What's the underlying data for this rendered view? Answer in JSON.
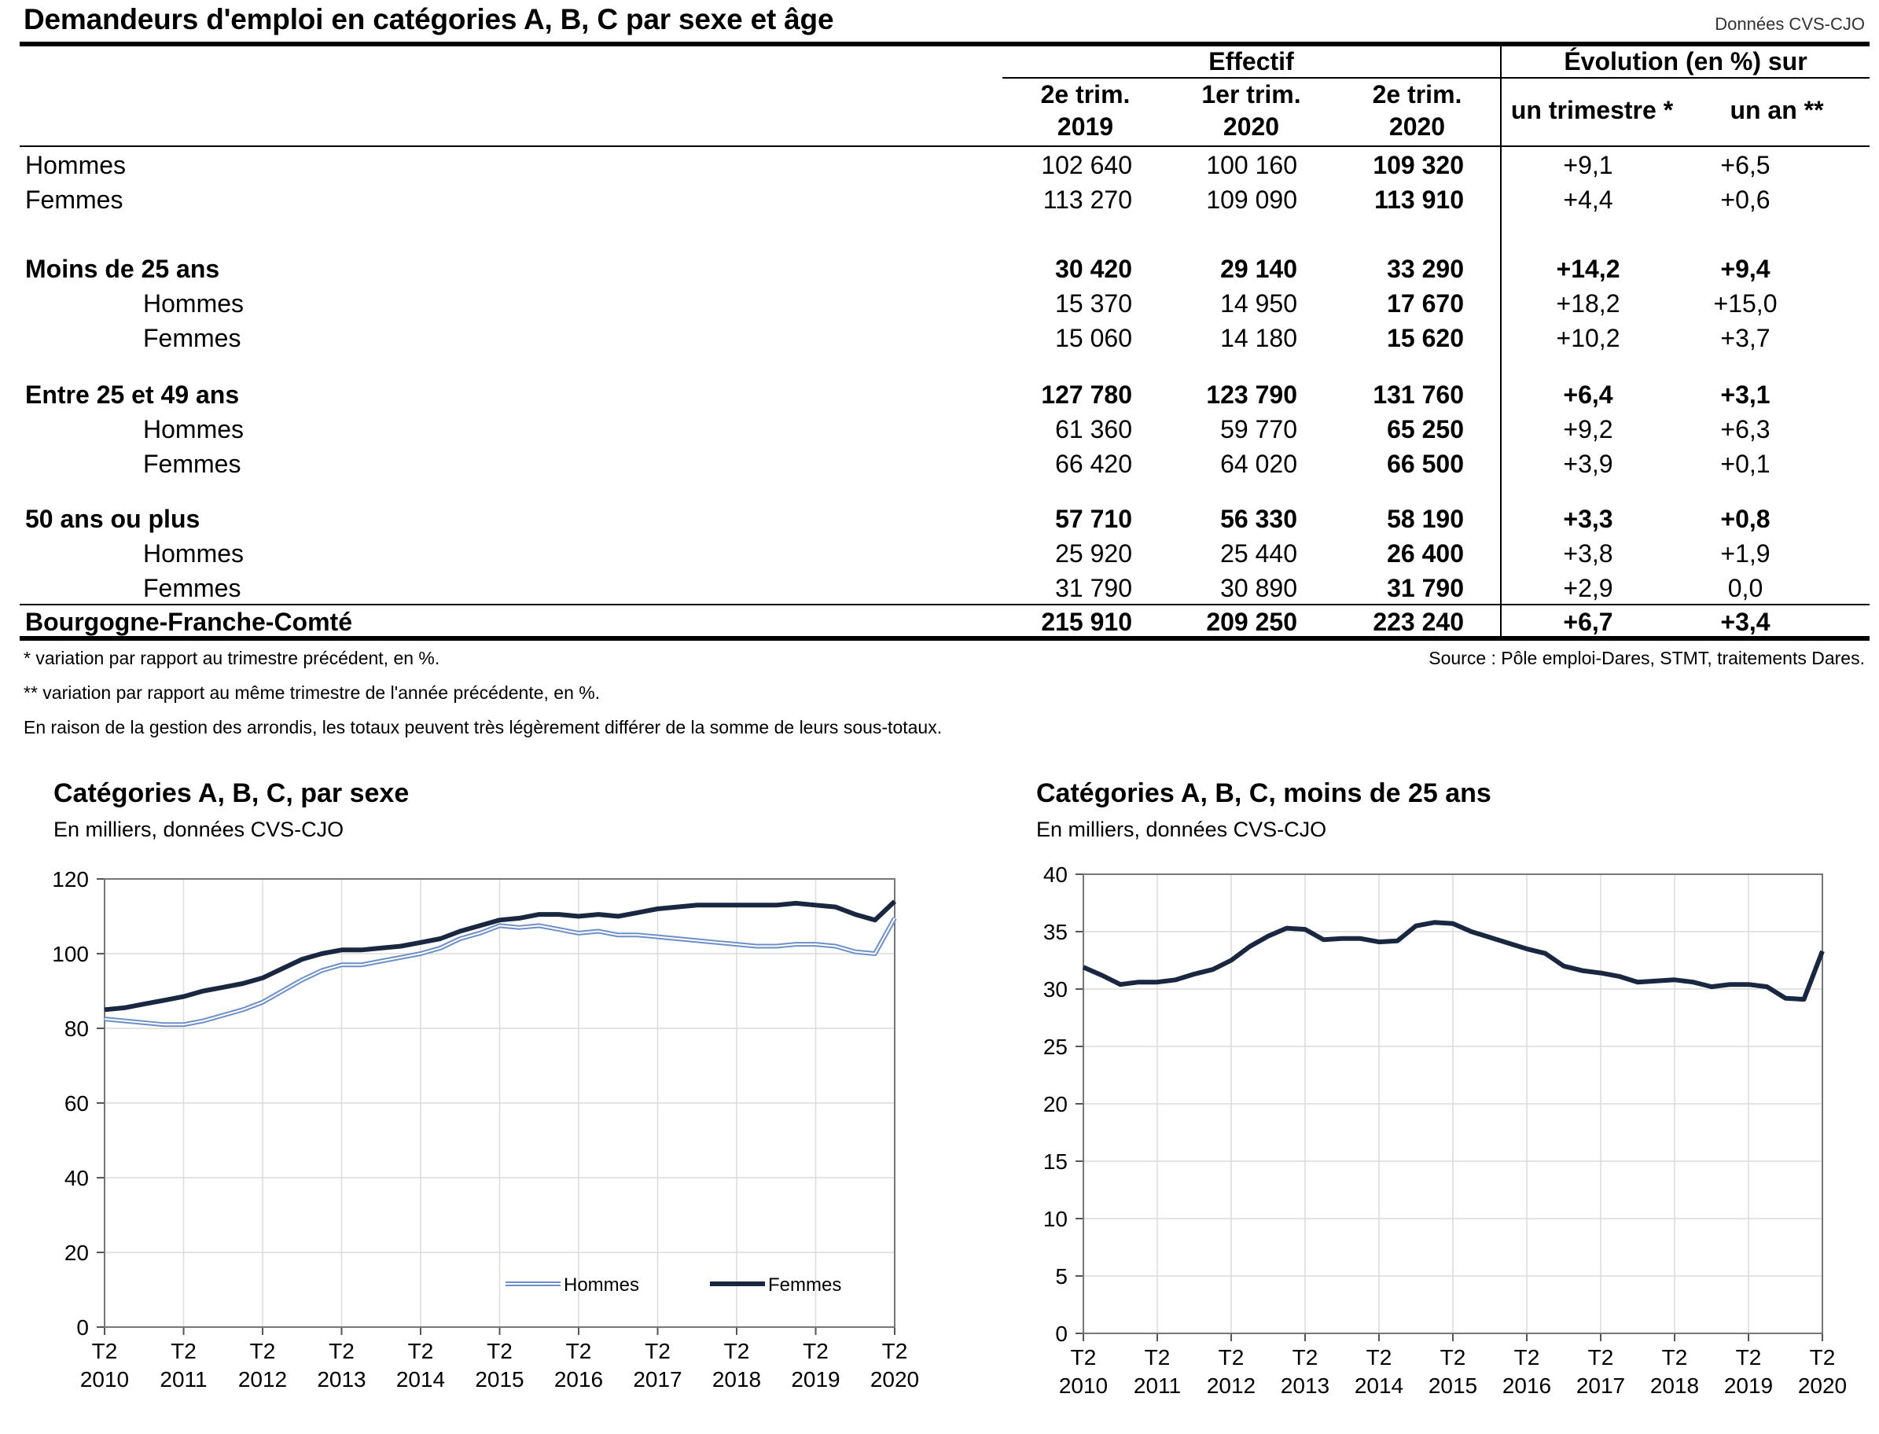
{
  "page": {
    "title": "Demandeurs d'emploi en catégories A, B, C par sexe et âge",
    "data_note": "Données CVS-CJO"
  },
  "table": {
    "group_headers": {
      "effectif": "Effectif",
      "evolution": "Évolution (en %) sur"
    },
    "columns": [
      {
        "line1": "2e trim.",
        "line2": "2019"
      },
      {
        "line1": "1er trim.",
        "line2": "2020"
      },
      {
        "line1": "2e trim.",
        "line2": "2020"
      }
    ],
    "evolution_columns": [
      "un trimestre *",
      "un an **"
    ],
    "rows": [
      {
        "label": "Hommes",
        "values": [
          "102 640",
          "100 160",
          "109 320"
        ],
        "evol": [
          "+9,1",
          "+6,5"
        ],
        "bold": false,
        "indent": false
      },
      {
        "label": "Femmes",
        "values": [
          "113 270",
          "109 090",
          "113 910"
        ],
        "evol": [
          "+4,4",
          "+0,6"
        ],
        "bold": false,
        "indent": false
      },
      {
        "label": "Moins de 25 ans",
        "values": [
          "30 420",
          "29 140",
          "33 290"
        ],
        "evol": [
          "+14,2",
          "+9,4"
        ],
        "bold": true,
        "indent": false
      },
      {
        "label": "Hommes",
        "values": [
          "15 370",
          "14 950",
          "17 670"
        ],
        "evol": [
          "+18,2",
          "+15,0"
        ],
        "bold": false,
        "indent": true
      },
      {
        "label": "Femmes",
        "values": [
          "15 060",
          "14 180",
          "15 620"
        ],
        "evol": [
          "+10,2",
          "+3,7"
        ],
        "bold": false,
        "indent": true
      },
      {
        "label": "Entre 25 et 49 ans",
        "values": [
          "127 780",
          "123 790",
          "131 760"
        ],
        "evol": [
          "+6,4",
          "+3,1"
        ],
        "bold": true,
        "indent": false
      },
      {
        "label": "Hommes",
        "values": [
          "61 360",
          "59 770",
          "65 250"
        ],
        "evol": [
          "+9,2",
          "+6,3"
        ],
        "bold": false,
        "indent": true
      },
      {
        "label": "Femmes",
        "values": [
          "66 420",
          "64 020",
          "66 500"
        ],
        "evol": [
          "+3,9",
          "+0,1"
        ],
        "bold": false,
        "indent": true
      },
      {
        "label": "50 ans ou plus",
        "values": [
          "57 710",
          "56 330",
          "58 190"
        ],
        "evol": [
          "+3,3",
          "+0,8"
        ],
        "bold": true,
        "indent": false
      },
      {
        "label": "Hommes",
        "values": [
          "25 920",
          "25 440",
          "26 400"
        ],
        "evol": [
          "+3,8",
          "+1,9"
        ],
        "bold": false,
        "indent": true
      },
      {
        "label": "Femmes",
        "values": [
          "31 790",
          "30 890",
          "31 790"
        ],
        "evol": [
          "+2,9",
          "0,0"
        ],
        "bold": false,
        "indent": true
      },
      {
        "label": "Bourgogne-Franche-Comté",
        "values": [
          "215 910",
          "209 250",
          "223 240"
        ],
        "evol": [
          "+6,7",
          "+3,4"
        ],
        "bold": true,
        "indent": false
      }
    ]
  },
  "footnotes": {
    "note1": "* variation par rapport au trimestre précédent, en %.",
    "note2": "** variation par rapport au même trimestre de l'année précédente, en %.",
    "note3": "En raison de la gestion des arrondis, les totaux peuvent très légèrement différer de la somme de leurs sous-totaux.",
    "source": "Source : Pôle emploi-Dares, STMT, traitements Dares."
  },
  "chart_data": [
    {
      "type": "line",
      "title": "Catégories A, B, C, par sexe",
      "subtitle": "En milliers, données CVS-CJO",
      "ylim": [
        0,
        120
      ],
      "yticks": [
        0,
        20,
        40,
        60,
        80,
        100,
        120
      ],
      "xtick_labels": [
        [
          "T2",
          "2010"
        ],
        [
          "T2",
          "2011"
        ],
        [
          "T2",
          "2012"
        ],
        [
          "T2",
          "2013"
        ],
        [
          "T2",
          "2014"
        ],
        [
          "T2",
          "2015"
        ],
        [
          "T2",
          "2016"
        ],
        [
          "T2",
          "2017"
        ],
        [
          "T2",
          "2018"
        ],
        [
          "T2",
          "2019"
        ],
        [
          "T2",
          "2020"
        ]
      ],
      "x_quarters": 41,
      "grid": true,
      "legend_position": "bottom-right",
      "series": [
        {
          "name": "Hommes",
          "style": "double",
          "color": "#6e8fc5",
          "values": [
            82.5,
            82.0,
            81.5,
            81.0,
            81.0,
            82.0,
            83.5,
            85.0,
            87.0,
            90.0,
            93.0,
            95.5,
            97.0,
            97.0,
            98.0,
            99.0,
            100.0,
            101.5,
            104.0,
            105.5,
            107.5,
            107.0,
            107.5,
            106.5,
            105.5,
            106.0,
            105.0,
            105.0,
            104.5,
            104.0,
            103.5,
            103.0,
            102.5,
            102.0,
            102.0,
            102.5,
            102.5,
            102.0,
            100.5,
            100.0,
            109.5
          ]
        },
        {
          "name": "Femmes",
          "style": "thick",
          "color": "#1a2740",
          "values": [
            85.0,
            85.5,
            86.5,
            87.5,
            88.5,
            90.0,
            91.0,
            92.0,
            93.5,
            96.0,
            98.5,
            100.0,
            101.0,
            101.0,
            101.5,
            102.0,
            103.0,
            104.0,
            106.0,
            107.5,
            109.0,
            109.5,
            110.5,
            110.5,
            110.0,
            110.5,
            110.0,
            111.0,
            112.0,
            112.5,
            113.0,
            113.0,
            113.0,
            113.0,
            113.0,
            113.5,
            113.0,
            112.5,
            110.5,
            109.0,
            114.0
          ]
        }
      ]
    },
    {
      "type": "line",
      "title": "Catégories A, B, C, moins de 25 ans",
      "subtitle": "En milliers, données CVS-CJO",
      "ylim": [
        0,
        40
      ],
      "yticks": [
        0,
        5,
        10,
        15,
        20,
        25,
        30,
        35,
        40
      ],
      "xtick_labels": [
        [
          "T2",
          "2010"
        ],
        [
          "T2",
          "2011"
        ],
        [
          "T2",
          "2012"
        ],
        [
          "T2",
          "2013"
        ],
        [
          "T2",
          "2014"
        ],
        [
          "T2",
          "2015"
        ],
        [
          "T2",
          "2016"
        ],
        [
          "T2",
          "2017"
        ],
        [
          "T2",
          "2018"
        ],
        [
          "T2",
          "2019"
        ],
        [
          "T2",
          "2020"
        ]
      ],
      "x_quarters": 41,
      "grid": true,
      "series": [
        {
          "style": "thick",
          "color": "#1a2740",
          "values": [
            31.9,
            31.2,
            30.4,
            30.6,
            30.6,
            30.8,
            31.3,
            31.7,
            32.5,
            33.7,
            34.6,
            35.3,
            35.2,
            34.3,
            34.4,
            34.4,
            34.1,
            34.2,
            35.5,
            35.8,
            35.7,
            35.0,
            34.5,
            34.0,
            33.5,
            33.1,
            32.0,
            31.6,
            31.4,
            31.1,
            30.6,
            30.7,
            30.8,
            30.6,
            30.2,
            30.4,
            30.4,
            30.2,
            29.2,
            29.1,
            33.3
          ]
        }
      ]
    }
  ]
}
